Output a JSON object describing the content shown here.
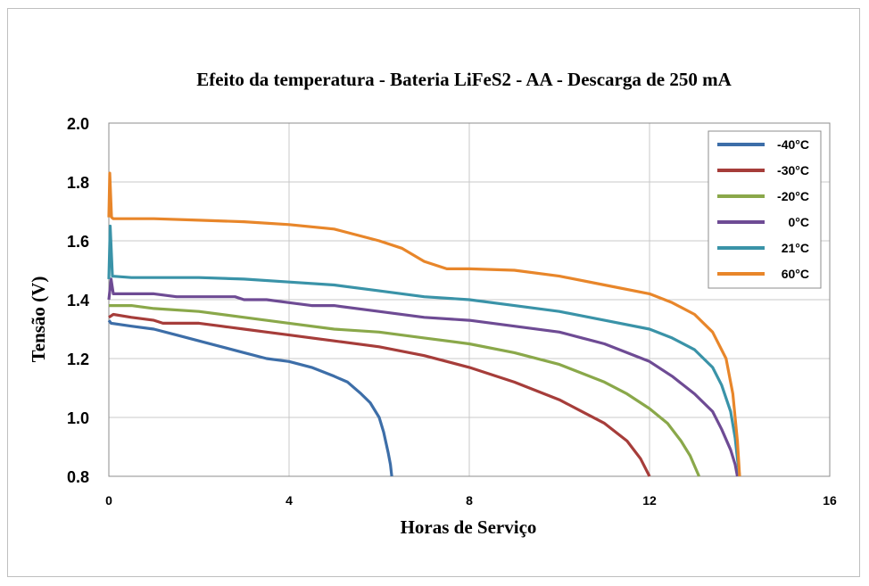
{
  "chart_data": {
    "type": "line",
    "title": "Efeito da temperatura - Bateria LiFeS2 - AA - Descarga de 250 mA",
    "xlabel": "Horas de Serviço",
    "ylabel": "Tensão (V)",
    "xlim": [
      0,
      16
    ],
    "ylim": [
      0.8,
      2.0
    ],
    "xticks": [
      "0",
      "4",
      "8",
      "12",
      "16"
    ],
    "yticks": [
      "0.8",
      "1.0",
      "1.2",
      "1.4",
      "1.6",
      "1.8",
      "2.0"
    ],
    "grid": true,
    "legend_position": "top-right",
    "series": [
      {
        "name": "-40°C",
        "color": "#3d6ea8",
        "points": [
          [
            0,
            1.33
          ],
          [
            0.05,
            1.32
          ],
          [
            0.5,
            1.31
          ],
          [
            1,
            1.3
          ],
          [
            1.5,
            1.28
          ],
          [
            2,
            1.26
          ],
          [
            2.5,
            1.24
          ],
          [
            3,
            1.22
          ],
          [
            3.5,
            1.2
          ],
          [
            4,
            1.19
          ],
          [
            4.5,
            1.17
          ],
          [
            5,
            1.14
          ],
          [
            5.3,
            1.12
          ],
          [
            5.6,
            1.08
          ],
          [
            5.8,
            1.05
          ],
          [
            6.0,
            1.0
          ],
          [
            6.1,
            0.95
          ],
          [
            6.2,
            0.88
          ],
          [
            6.25,
            0.84
          ],
          [
            6.28,
            0.8
          ]
        ]
      },
      {
        "name": "-30°C",
        "color": "#a63d3a",
        "points": [
          [
            0,
            1.34
          ],
          [
            0.1,
            1.35
          ],
          [
            0.5,
            1.34
          ],
          [
            1,
            1.33
          ],
          [
            1.2,
            1.32
          ],
          [
            2,
            1.32
          ],
          [
            2.5,
            1.31
          ],
          [
            3,
            1.3
          ],
          [
            3.5,
            1.29
          ],
          [
            4,
            1.28
          ],
          [
            5,
            1.26
          ],
          [
            6,
            1.24
          ],
          [
            7,
            1.21
          ],
          [
            8,
            1.17
          ],
          [
            9,
            1.12
          ],
          [
            10,
            1.06
          ],
          [
            10.5,
            1.02
          ],
          [
            11,
            0.98
          ],
          [
            11.5,
            0.92
          ],
          [
            11.8,
            0.86
          ],
          [
            12.0,
            0.8
          ]
        ]
      },
      {
        "name": "-20°C",
        "color": "#8aa84a",
        "points": [
          [
            0,
            1.38
          ],
          [
            0.5,
            1.38
          ],
          [
            1,
            1.37
          ],
          [
            2,
            1.36
          ],
          [
            3,
            1.34
          ],
          [
            4,
            1.32
          ],
          [
            5,
            1.3
          ],
          [
            6,
            1.29
          ],
          [
            7,
            1.27
          ],
          [
            8,
            1.25
          ],
          [
            9,
            1.22
          ],
          [
            10,
            1.18
          ],
          [
            10.5,
            1.15
          ],
          [
            11,
            1.12
          ],
          [
            11.5,
            1.08
          ],
          [
            12,
            1.03
          ],
          [
            12.4,
            0.98
          ],
          [
            12.7,
            0.92
          ],
          [
            12.9,
            0.87
          ],
          [
            13.1,
            0.8
          ]
        ]
      },
      {
        "name": "0°C",
        "color": "#6e4b94",
        "points": [
          [
            0,
            1.4
          ],
          [
            0.05,
            1.47
          ],
          [
            0.1,
            1.42
          ],
          [
            0.5,
            1.42
          ],
          [
            1,
            1.42
          ],
          [
            1.5,
            1.41
          ],
          [
            2,
            1.41
          ],
          [
            2.8,
            1.41
          ],
          [
            3,
            1.4
          ],
          [
            3.5,
            1.4
          ],
          [
            4,
            1.39
          ],
          [
            4.5,
            1.38
          ],
          [
            5,
            1.38
          ],
          [
            6,
            1.36
          ],
          [
            7,
            1.34
          ],
          [
            8,
            1.33
          ],
          [
            9,
            1.31
          ],
          [
            10,
            1.29
          ],
          [
            10.5,
            1.27
          ],
          [
            11,
            1.25
          ],
          [
            11.5,
            1.22
          ],
          [
            12,
            1.19
          ],
          [
            12.5,
            1.14
          ],
          [
            13,
            1.08
          ],
          [
            13.4,
            1.02
          ],
          [
            13.6,
            0.96
          ],
          [
            13.8,
            0.89
          ],
          [
            13.9,
            0.84
          ],
          [
            13.95,
            0.8
          ]
        ]
      },
      {
        "name": "21°C",
        "color": "#3a93a8",
        "points": [
          [
            0,
            1.47
          ],
          [
            0.03,
            1.65
          ],
          [
            0.08,
            1.48
          ],
          [
            0.5,
            1.475
          ],
          [
            1,
            1.475
          ],
          [
            2,
            1.475
          ],
          [
            3,
            1.47
          ],
          [
            4,
            1.46
          ],
          [
            5,
            1.45
          ],
          [
            6,
            1.43
          ],
          [
            7,
            1.41
          ],
          [
            8,
            1.4
          ],
          [
            9,
            1.38
          ],
          [
            10,
            1.36
          ],
          [
            11,
            1.33
          ],
          [
            12,
            1.3
          ],
          [
            12.5,
            1.27
          ],
          [
            13,
            1.23
          ],
          [
            13.4,
            1.17
          ],
          [
            13.6,
            1.11
          ],
          [
            13.8,
            1.02
          ],
          [
            13.9,
            0.93
          ],
          [
            13.95,
            0.86
          ],
          [
            14.0,
            0.8
          ]
        ]
      },
      {
        "name": "60°C",
        "color": "#e8862a",
        "points": [
          [
            0,
            1.68
          ],
          [
            0.02,
            1.83
          ],
          [
            0.06,
            1.68
          ],
          [
            0.1,
            1.675
          ],
          [
            1,
            1.675
          ],
          [
            2,
            1.67
          ],
          [
            3,
            1.665
          ],
          [
            4,
            1.655
          ],
          [
            5,
            1.64
          ],
          [
            6,
            1.6
          ],
          [
            6.5,
            1.575
          ],
          [
            7,
            1.53
          ],
          [
            7.5,
            1.505
          ],
          [
            8,
            1.505
          ],
          [
            9,
            1.5
          ],
          [
            10,
            1.48
          ],
          [
            11,
            1.45
          ],
          [
            12,
            1.42
          ],
          [
            12.5,
            1.39
          ],
          [
            13,
            1.35
          ],
          [
            13.4,
            1.29
          ],
          [
            13.7,
            1.2
          ],
          [
            13.85,
            1.08
          ],
          [
            13.95,
            0.92
          ],
          [
            14.0,
            0.8
          ]
        ]
      }
    ]
  }
}
